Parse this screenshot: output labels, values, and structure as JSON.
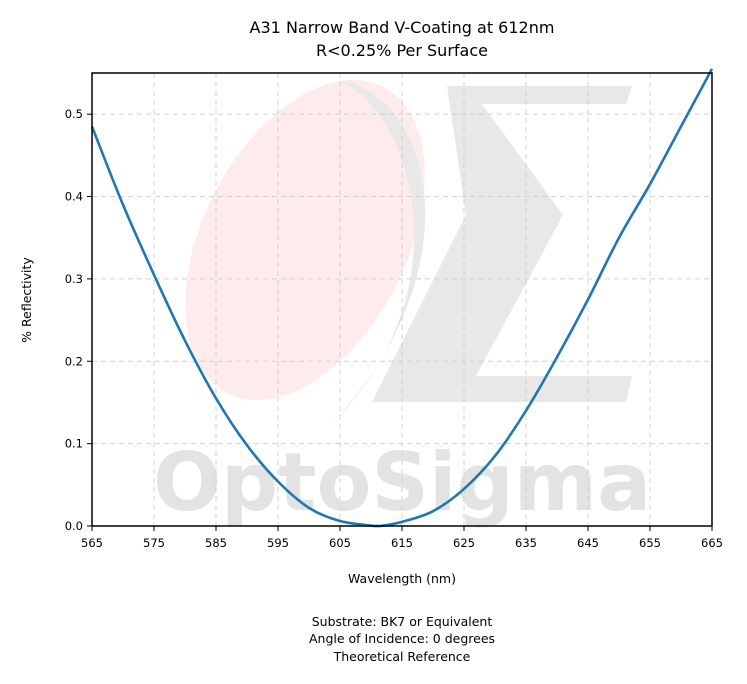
{
  "chart_data": {
    "type": "line",
    "title_lines": [
      "A31 Narrow Band V-Coating at 612nm",
      "R<0.25% Per Surface"
    ],
    "xlabel": "Wavelength (nm)",
    "ylabel": "% Reflectivity",
    "xlim": [
      565,
      665
    ],
    "ylim": [
      0,
      0.55
    ],
    "x_ticks": [
      565,
      575,
      585,
      595,
      605,
      615,
      625,
      635,
      645,
      655,
      665
    ],
    "y_ticks": [
      0.0,
      0.1,
      0.2,
      0.3,
      0.4,
      0.5
    ],
    "y_tick_labels": [
      "0.0",
      "0.1",
      "0.2",
      "0.3",
      "0.4",
      "0.5"
    ],
    "grid": true,
    "series": [
      {
        "color": "#1f77b4",
        "x": [
          565,
          570,
          575,
          580,
          585,
          590,
          595,
          600,
          605,
          610,
          611,
          612,
          615,
          620,
          625,
          630,
          635,
          640,
          645,
          650,
          655,
          660,
          665
        ],
        "y": [
          0.485,
          0.39,
          0.305,
          0.225,
          0.155,
          0.098,
          0.054,
          0.022,
          0.006,
          0.0005,
          0.0,
          0.0005,
          0.005,
          0.018,
          0.045,
          0.085,
          0.14,
          0.205,
          0.275,
          0.35,
          0.415,
          0.485,
          0.555
        ]
      }
    ]
  },
  "watermark": {
    "text": "OptoSigma",
    "sigma_color": "#e8e8e8",
    "ellipse_color": "#fdeceb"
  },
  "footer_lines": [
    "Substrate: BK7 or Equivalent",
    "Angle of Incidence: 0 degrees",
    "Theoretical Reference"
  ]
}
